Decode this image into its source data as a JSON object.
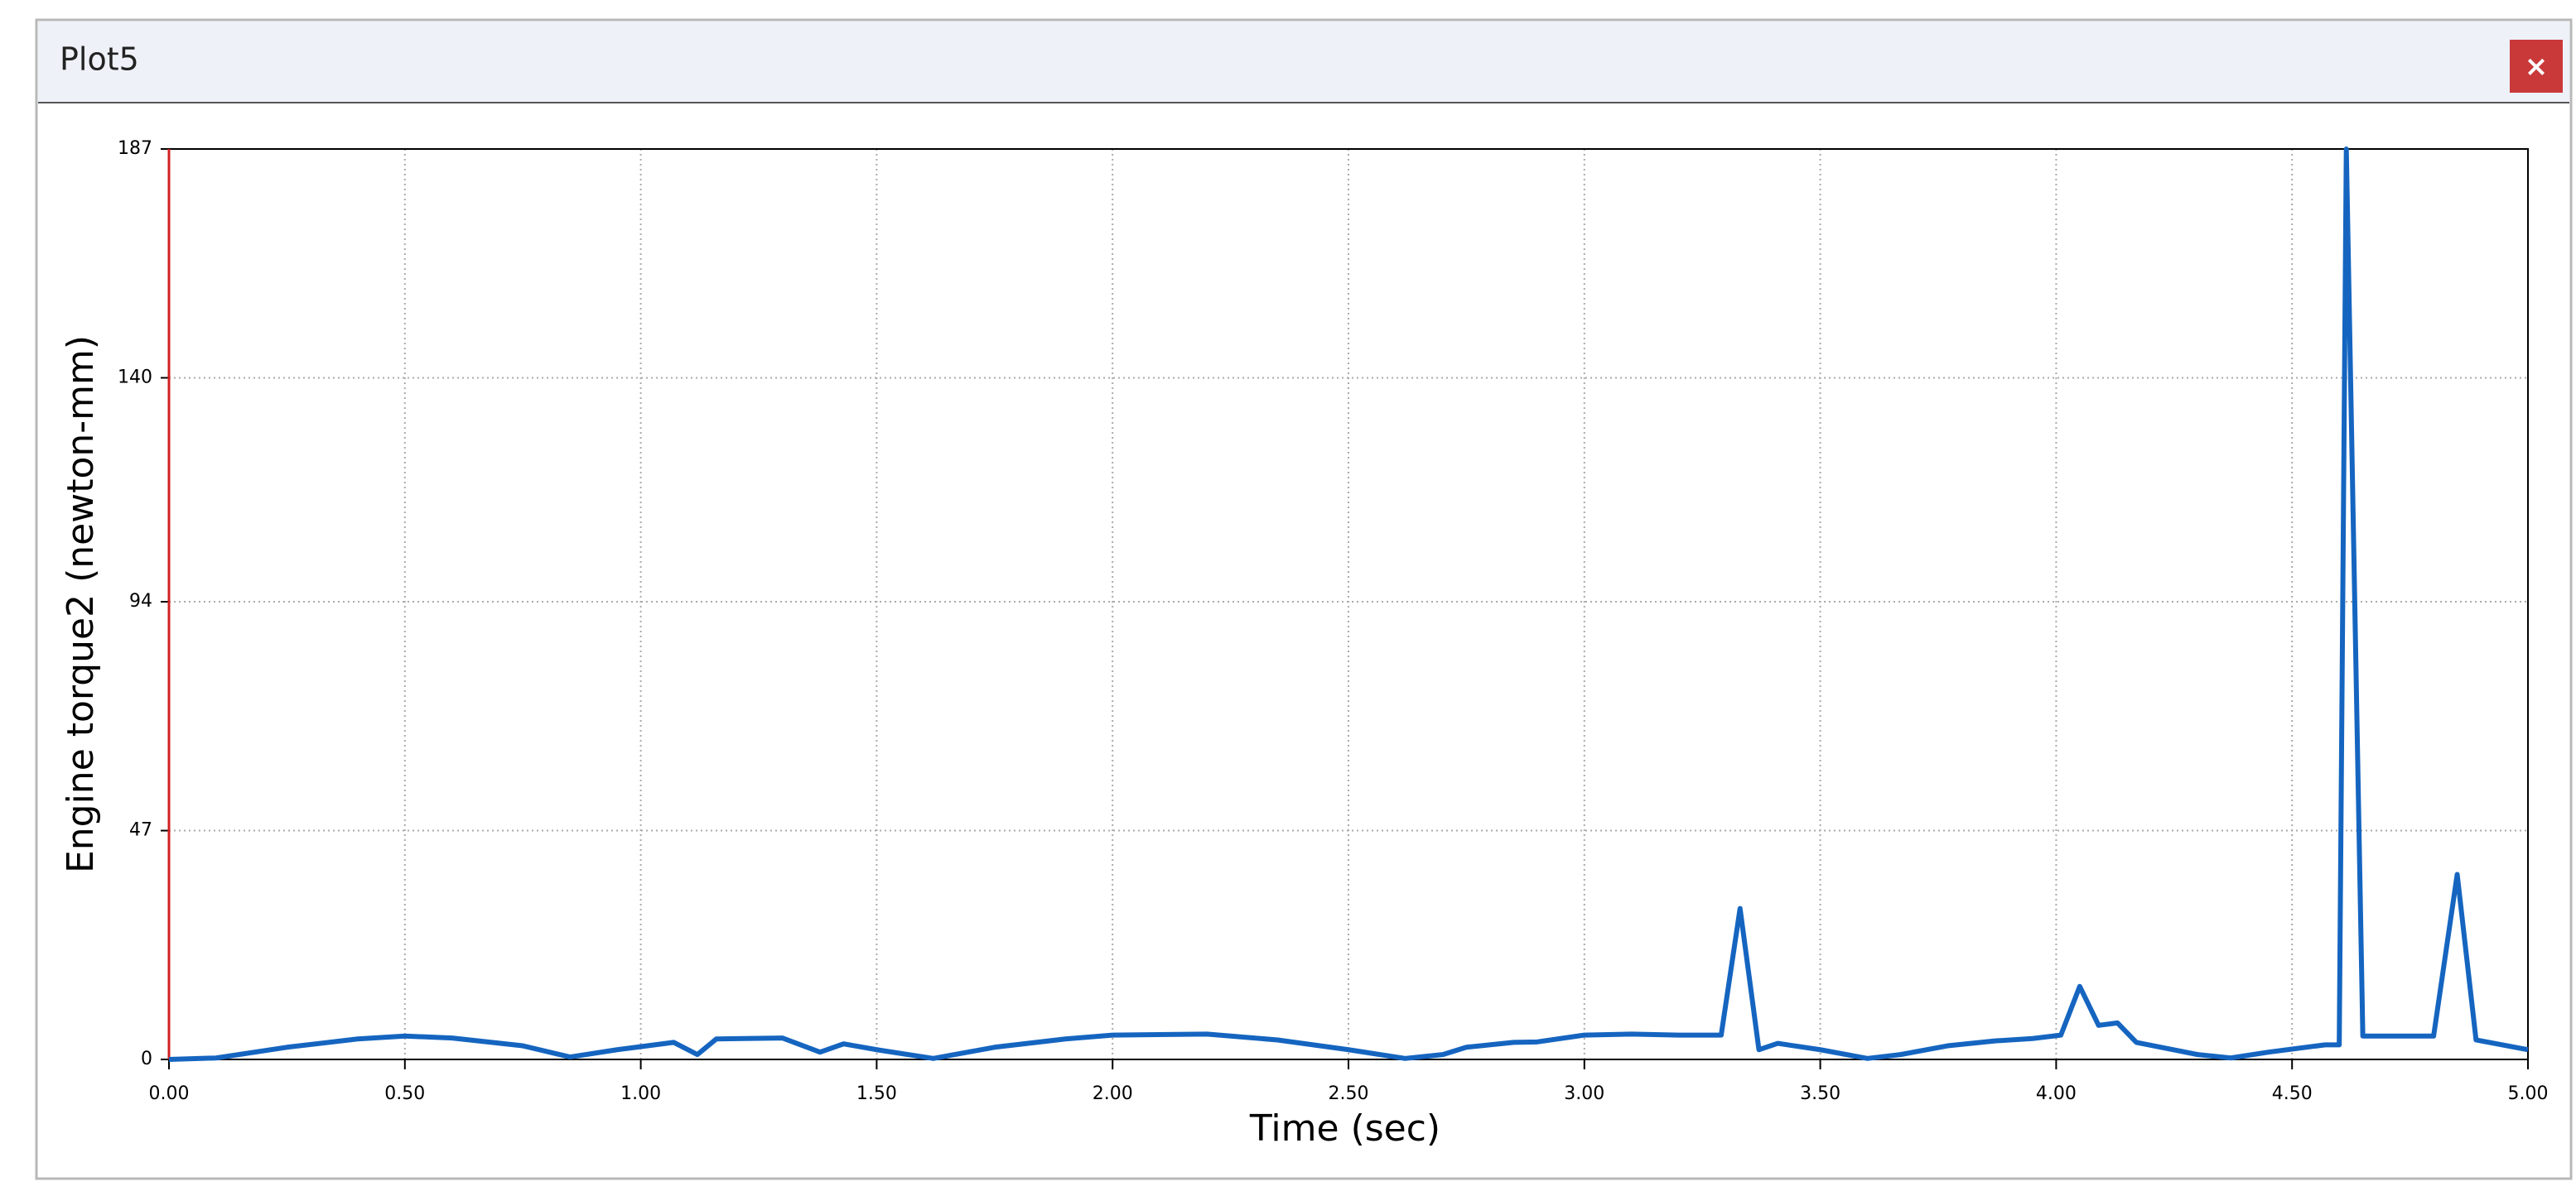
{
  "window": {
    "title": "Plot5",
    "close": "×"
  },
  "chart_data": {
    "type": "line",
    "xlabel": "Time (sec)",
    "ylabel": "Engine torque2 (newton-mm)",
    "x": [
      0,
      0.1,
      0.25,
      0.4,
      0.5,
      0.6,
      0.75,
      0.85,
      0.95,
      1.07,
      1.12,
      1.16,
      1.3,
      1.38,
      1.43,
      1.5,
      1.62,
      1.75,
      1.9,
      2.0,
      2.2,
      2.35,
      2.5,
      2.62,
      2.7,
      2.75,
      2.85,
      2.9,
      3.0,
      3.1,
      3.2,
      3.29,
      3.33,
      3.37,
      3.41,
      3.5,
      3.6,
      3.67,
      3.77,
      3.87,
      3.95,
      4.01,
      4.05,
      4.09,
      4.13,
      4.17,
      4.3,
      4.37,
      4.45,
      4.57,
      4.6,
      4.615,
      4.65,
      4.8,
      4.85,
      4.89,
      5.0
    ],
    "series": [
      {
        "name": "Engine torque2",
        "color": "#1565c0",
        "values": [
          0,
          0.3,
          2.5,
          4.2,
          4.8,
          4.4,
          2.8,
          0.5,
          2,
          3.5,
          1,
          4.2,
          4.4,
          1.5,
          3.2,
          2,
          0.2,
          2.5,
          4.2,
          5,
          5.2,
          4,
          2,
          0.2,
          1,
          2.5,
          3.5,
          3.6,
          5,
          5.2,
          5,
          5,
          31,
          2,
          3.3,
          2,
          0.2,
          1,
          2.8,
          3.8,
          4.3,
          5,
          15,
          7,
          7.5,
          3.5,
          1,
          0.3,
          1.5,
          3,
          3,
          187,
          4.8,
          4.8,
          38,
          4,
          2
        ]
      }
    ],
    "xlim": [
      0,
      5
    ],
    "xticks": [
      {
        "value": 0,
        "label": "0.00"
      },
      {
        "value": 0.5,
        "label": "0.50"
      },
      {
        "value": 1,
        "label": "1.00"
      },
      {
        "value": 1.5,
        "label": "1.50"
      },
      {
        "value": 2,
        "label": "2.00"
      },
      {
        "value": 2.5,
        "label": "2.50"
      },
      {
        "value": 3,
        "label": "3.00"
      },
      {
        "value": 3.5,
        "label": "3.50"
      },
      {
        "value": 4,
        "label": "4.00"
      },
      {
        "value": 4.5,
        "label": "4.50"
      },
      {
        "value": 5,
        "label": "5.00"
      }
    ],
    "ylim": [
      0,
      187
    ],
    "yticks": [
      0,
      47,
      94,
      140,
      187
    ],
    "grid": true
  }
}
